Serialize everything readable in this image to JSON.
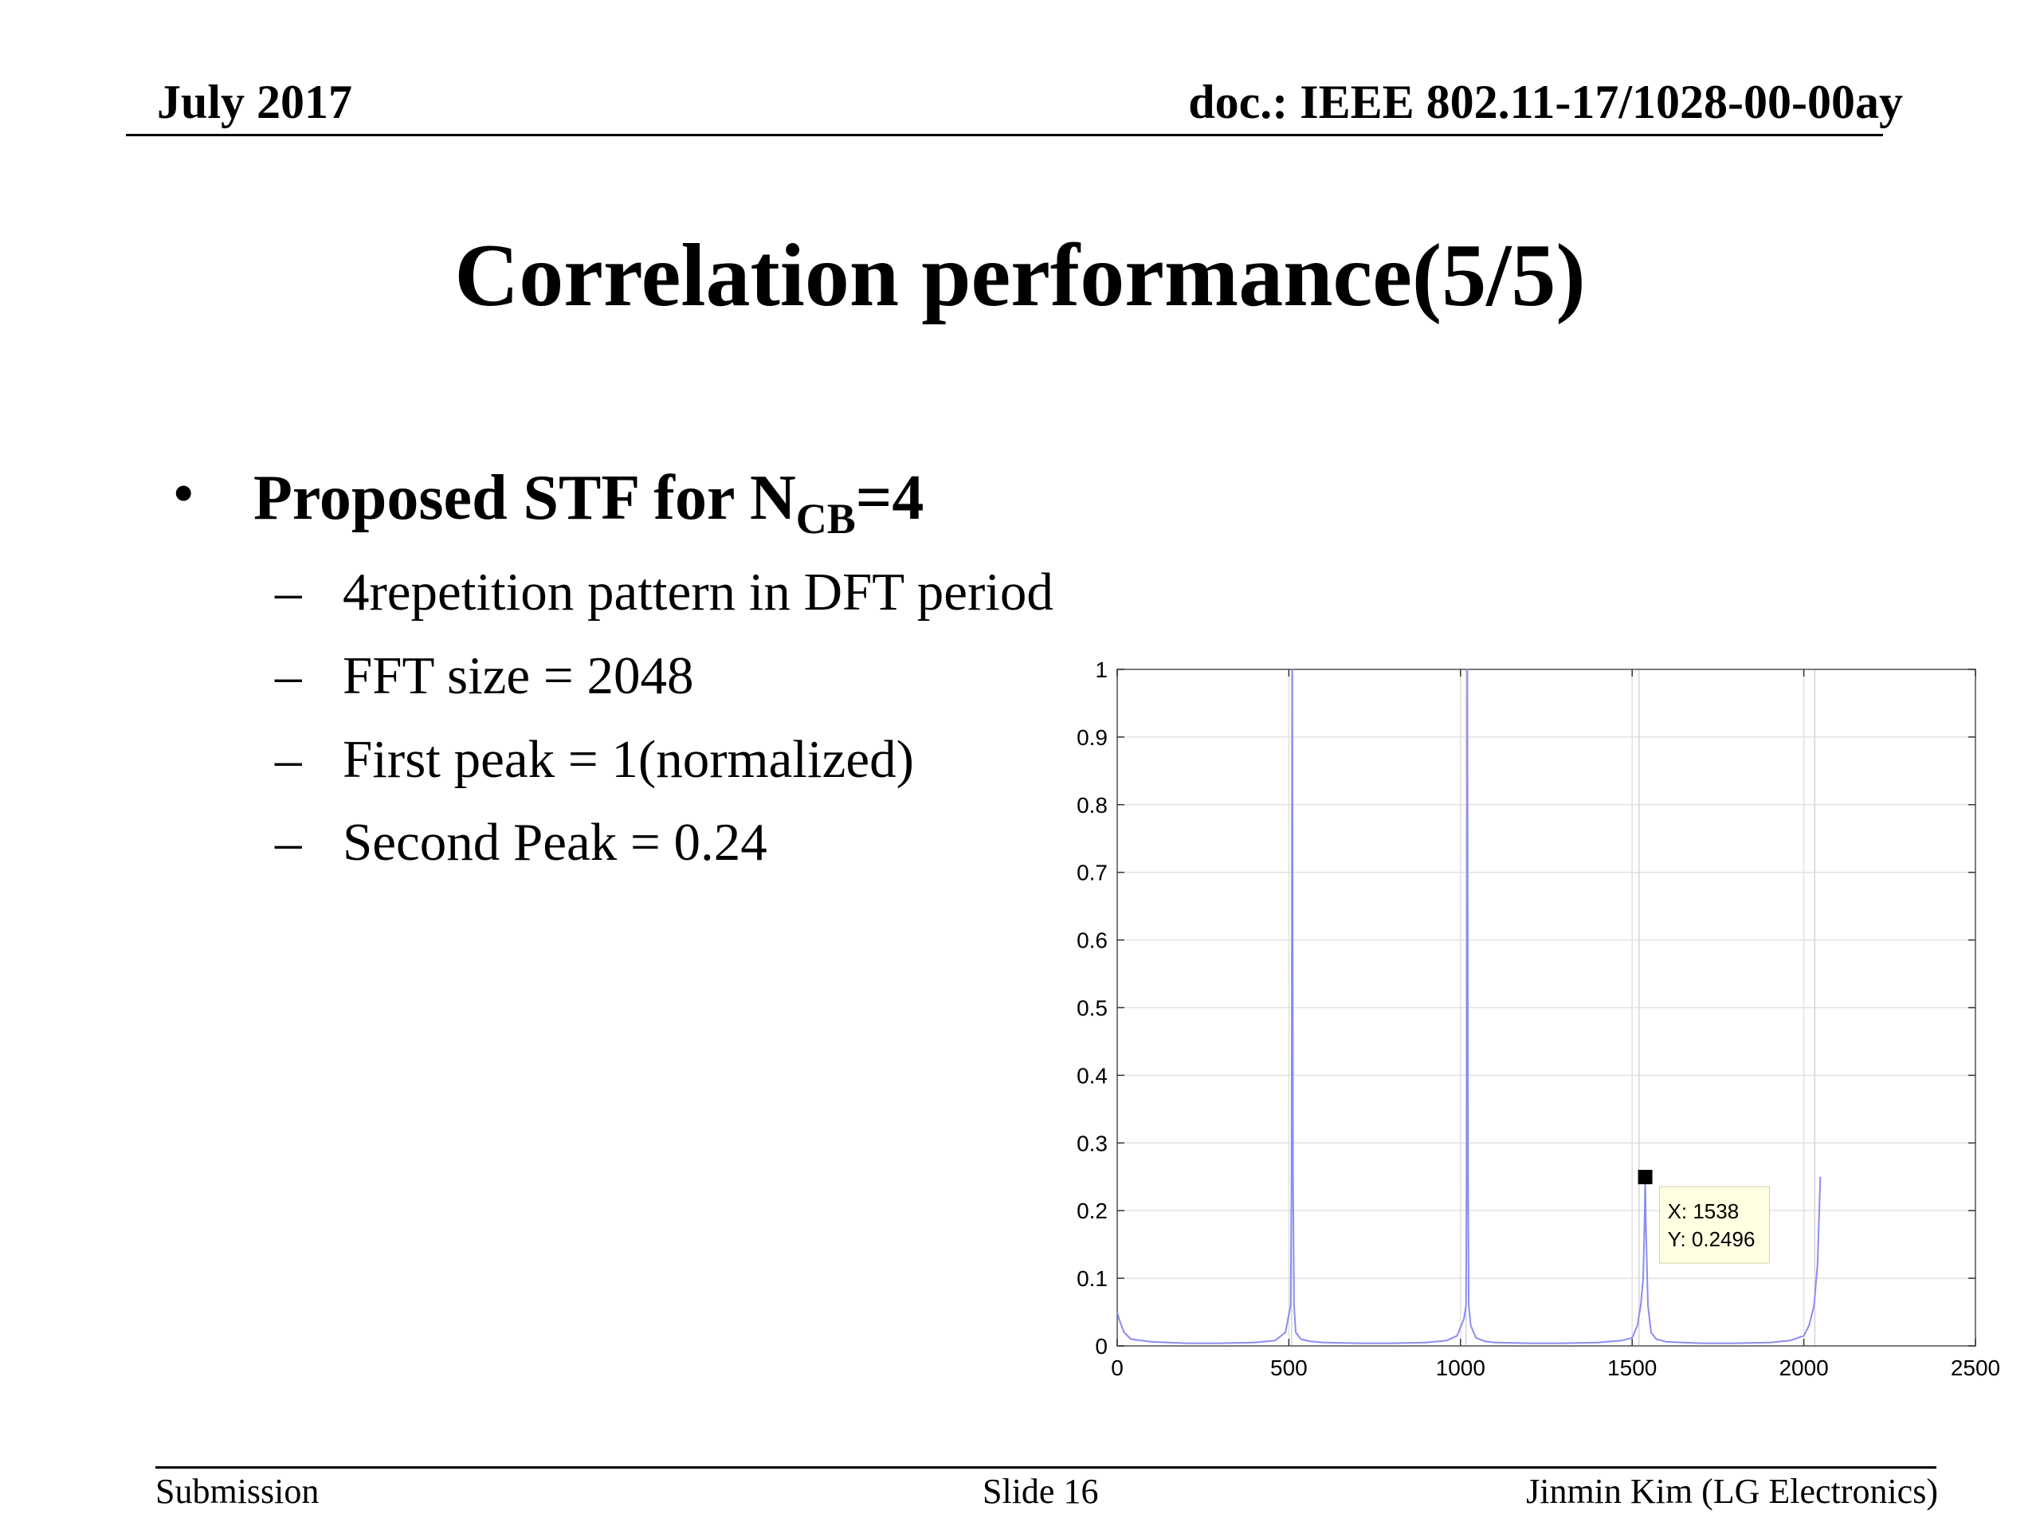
{
  "header": {
    "date": "July 2017",
    "doc_id": "doc.: IEEE 802.11-17/1028-00-00ay"
  },
  "slide": {
    "title": "Correlation performance(5/5)",
    "bullet": {
      "marker": "•",
      "prefix": "Proposed STF for N",
      "subscript": "CB",
      "suffix": "=4"
    },
    "sub_bullets": [
      {
        "marker": "–",
        "text": "4repetition pattern in DFT period"
      },
      {
        "marker": "–",
        "text": "FFT size = 2048"
      },
      {
        "marker": "–",
        "text": "First peak = 1(normalized)"
      },
      {
        "marker": "–",
        "text": "Second Peak = 0.24"
      }
    ]
  },
  "chart_data": {
    "type": "line",
    "title": "",
    "xlabel": "",
    "ylabel": "",
    "xlim": [
      0,
      2500
    ],
    "ylim": [
      0,
      1
    ],
    "xticks": [
      0,
      500,
      1000,
      1500,
      2000,
      2500
    ],
    "yticks": [
      0,
      0.1,
      0.2,
      0.3,
      0.4,
      0.5,
      0.6,
      0.7,
      0.8,
      0.9,
      1
    ],
    "grid": true,
    "line_color": "#8c8cf0",
    "series": [
      {
        "x": [
          0,
          5,
          20,
          40,
          100,
          200,
          300,
          400,
          460,
          490,
          505,
          508,
          510,
          512,
          515,
          520,
          535,
          560,
          600,
          700,
          800,
          900,
          960,
          990,
          1010,
          1016,
          1018,
          1020,
          1022,
          1024,
          1030,
          1045,
          1070,
          1100,
          1200,
          1300,
          1400,
          1470,
          1500,
          1515,
          1525,
          1532,
          1536,
          1538,
          1540,
          1546,
          1555,
          1570,
          1600,
          1700,
          1800,
          1900,
          1960,
          2000,
          2015,
          2030,
          2040,
          2045,
          2048
        ],
        "y": [
          0.05,
          0.04,
          0.02,
          0.01,
          0.006,
          0.004,
          0.004,
          0.005,
          0.008,
          0.02,
          0.06,
          0.25,
          1.0,
          0.25,
          0.06,
          0.02,
          0.01,
          0.007,
          0.005,
          0.004,
          0.004,
          0.005,
          0.008,
          0.015,
          0.04,
          0.06,
          0.25,
          1.0,
          0.25,
          0.06,
          0.03,
          0.012,
          0.007,
          0.005,
          0.004,
          0.004,
          0.005,
          0.008,
          0.012,
          0.03,
          0.06,
          0.1,
          0.18,
          0.2496,
          0.18,
          0.06,
          0.02,
          0.01,
          0.006,
          0.004,
          0.004,
          0.005,
          0.008,
          0.015,
          0.03,
          0.06,
          0.12,
          0.2,
          0.25
        ]
      }
    ],
    "vertical_markers": [
      508,
      1016,
      1520,
      2032
    ],
    "datatip": {
      "x": 1538,
      "y": 0.2496,
      "x_text": "X: 1538",
      "y_text": "Y: 0.2496"
    }
  },
  "footer": {
    "left": "Submission",
    "center": "Slide 16",
    "right": "Jinmin Kim (LG Electronics)"
  }
}
